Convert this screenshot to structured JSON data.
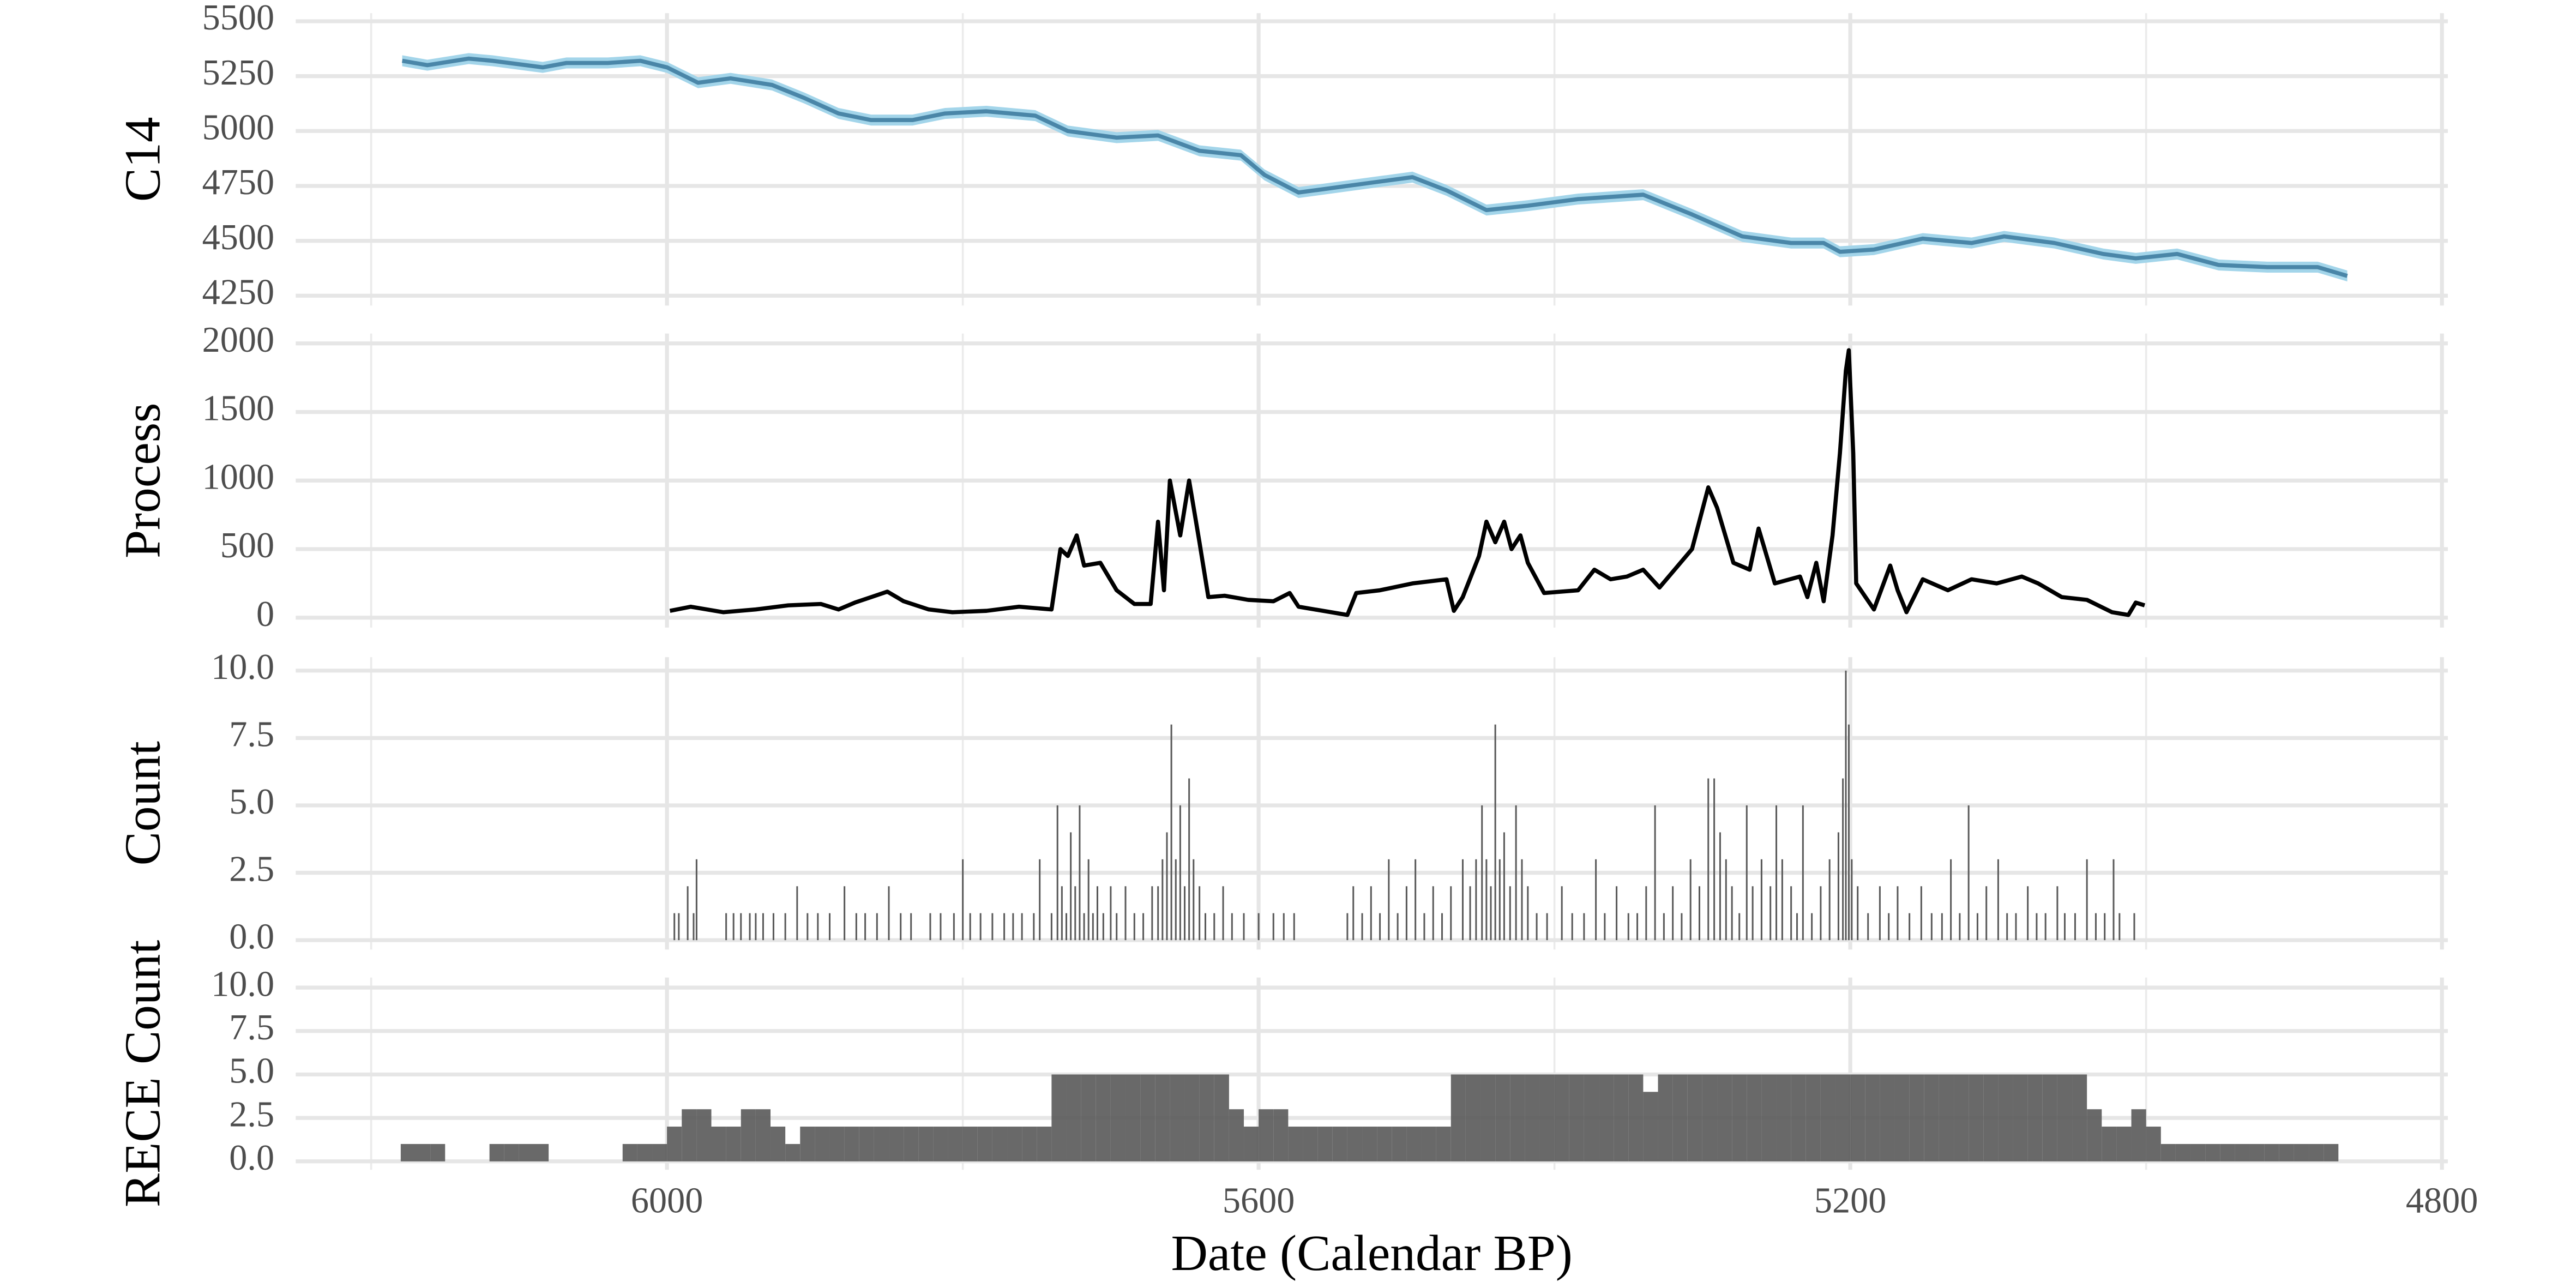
{
  "chart_data": {
    "xlabel": "Date (Calendar BP)",
    "xlim": [
      6251,
      4796
    ],
    "xticks": [
      6000,
      5600,
      5200,
      4800
    ],
    "xminor": [
      6200,
      5800,
      5400,
      5000
    ],
    "grid": true,
    "panels": [
      {
        "type": "ribbon-line",
        "ylabel": "C14",
        "ylim": [
          4205,
          5537
        ],
        "yticks": [
          4250,
          4500,
          4750,
          5000,
          5250,
          5500
        ],
        "x": [
          6179,
          6162,
          6134,
          6118,
          6084,
          6068,
          6040,
          6018,
          6000,
          5979,
          5957,
          5929,
          5907,
          5884,
          5862,
          5834,
          5812,
          5784,
          5751,
          5729,
          5696,
          5668,
          5640,
          5612,
          5596,
          5573,
          5540,
          5496,
          5473,
          5446,
          5418,
          5384,
          5340,
          5307,
          5273,
          5240,
          5218,
          5207,
          5184,
          5151,
          5118,
          5096,
          5062,
          5029,
          5007,
          4979,
          4951,
          4918,
          4884,
          4864
        ],
        "series": [
          {
            "color": "#4a86a8",
            "band_color": "#a3d5ea",
            "values": [
              5320,
              5300,
              5330,
              5320,
              5290,
              5310,
              5310,
              5320,
              5290,
              5220,
              5240,
              5210,
              5150,
              5080,
              5050,
              5050,
              5080,
              5090,
              5070,
              5000,
              4970,
              4980,
              4910,
              4890,
              4800,
              4720,
              4750,
              4790,
              4730,
              4640,
              4660,
              4690,
              4710,
              4620,
              4520,
              4490,
              4490,
              4450,
              4460,
              4510,
              4490,
              4520,
              4490,
              4440,
              4420,
              4440,
              4390,
              4380,
              4380,
              4340
            ],
            "lower": [
              5295,
              5275,
              5305,
              5295,
              5265,
              5285,
              5285,
              5295,
              5265,
              5195,
              5215,
              5185,
              5125,
              5055,
              5025,
              5025,
              5055,
              5065,
              5045,
              4975,
              4945,
              4955,
              4885,
              4865,
              4775,
              4695,
              4725,
              4765,
              4705,
              4615,
              4635,
              4665,
              4685,
              4595,
              4495,
              4465,
              4465,
              4425,
              4435,
              4485,
              4465,
              4495,
              4465,
              4415,
              4395,
              4415,
              4365,
              4355,
              4355,
              4315
            ],
            "upper": [
              5345,
              5325,
              5355,
              5345,
              5315,
              5335,
              5335,
              5345,
              5315,
              5245,
              5265,
              5235,
              5175,
              5105,
              5075,
              5075,
              5105,
              5115,
              5095,
              5025,
              4995,
              5005,
              4935,
              4915,
              4825,
              4745,
              4775,
              4815,
              4755,
              4665,
              4685,
              4715,
              4735,
              4645,
              4545,
              4515,
              4515,
              4475,
              4485,
              4535,
              4515,
              4545,
              4515,
              4465,
              4445,
              4465,
              4415,
              4405,
              4405,
              4365
            ]
          }
        ]
      },
      {
        "type": "line",
        "ylabel": "Process",
        "ylim": [
          -72,
          2072
        ],
        "yticks": [
          0,
          500,
          1000,
          1500,
          2000
        ],
        "x": [
          5998,
          5984,
          5962,
          5940,
          5918,
          5896,
          5884,
          5873,
          5862,
          5851,
          5840,
          5823,
          5807,
          5784,
          5762,
          5740,
          5734,
          5729,
          5723,
          5718,
          5707,
          5696,
          5684,
          5673,
          5668,
          5664,
          5660,
          5653,
          5647,
          5640,
          5634,
          5623,
          5607,
          5590,
          5579,
          5573,
          5562,
          5540,
          5534,
          5518,
          5496,
          5473,
          5468,
          5462,
          5451,
          5446,
          5440,
          5434,
          5429,
          5423,
          5418,
          5407,
          5384,
          5373,
          5362,
          5351,
          5340,
          5329,
          5307,
          5296,
          5290,
          5279,
          5268,
          5262,
          5251,
          5234,
          5229,
          5223,
          5218,
          5212,
          5207,
          5203,
          5201,
          5198,
          5196,
          5184,
          5173,
          5168,
          5162,
          5151,
          5134,
          5118,
          5101,
          5084,
          5073,
          5057,
          5040,
          5023,
          5012,
          5007,
          5001
        ],
        "series": [
          {
            "color": "#000000",
            "values": [
              50,
              80,
              40,
              60,
              90,
              100,
              60,
              110,
              150,
              190,
              120,
              60,
              40,
              50,
              80,
              60,
              500,
              450,
              600,
              380,
              400,
              200,
              100,
              100,
              700,
              200,
              1000,
              600,
              1000,
              550,
              150,
              160,
              130,
              120,
              180,
              80,
              60,
              20,
              180,
              200,
              250,
              280,
              50,
              150,
              450,
              700,
              550,
              700,
              500,
              600,
              400,
              180,
              200,
              350,
              280,
              300,
              350,
              220,
              500,
              950,
              800,
              400,
              350,
              650,
              250,
              300,
              150,
              400,
              120,
              600,
              1200,
              1800,
              1950,
              1200,
              250,
              60,
              380,
              200,
              40,
              280,
              200,
              280,
              250,
              300,
              250,
              150,
              130,
              40,
              20,
              110,
              90
            ]
          }
        ]
      },
      {
        "type": "spikes",
        "ylabel": "Count",
        "color": "#595959",
        "ylim": [
          -0.35,
          10.5
        ],
        "yticks": [
          {
            "value": 0,
            "label": "0.0"
          },
          2.5,
          {
            "value": 5,
            "label": "5.0"
          },
          7.5,
          {
            "value": 10,
            "label": "10.0"
          }
        ],
        "x": [
          5995,
          5992,
          5986,
          5982,
          5980,
          5960,
          5955,
          5950,
          5944,
          5940,
          5935,
          5928,
          5920,
          5912,
          5905,
          5898,
          5890,
          5880,
          5872,
          5866,
          5858,
          5850,
          5842,
          5835,
          5822,
          5815,
          5806,
          5800,
          5795,
          5788,
          5780,
          5772,
          5766,
          5760,
          5752,
          5748,
          5740,
          5736,
          5733,
          5730,
          5727,
          5724,
          5721,
          5718,
          5715,
          5712,
          5709,
          5705,
          5700,
          5696,
          5690,
          5684,
          5678,
          5672,
          5668,
          5665,
          5662,
          5659,
          5656,
          5653,
          5650,
          5647,
          5644,
          5640,
          5636,
          5630,
          5624,
          5618,
          5610,
          5600,
          5590,
          5583,
          5576,
          5540,
          5536,
          5530,
          5524,
          5518,
          5512,
          5506,
          5500,
          5494,
          5488,
          5482,
          5476,
          5470,
          5462,
          5457,
          5453,
          5449,
          5446,
          5443,
          5440,
          5437,
          5434,
          5430,
          5426,
          5422,
          5418,
          5412,
          5405,
          5395,
          5388,
          5380,
          5372,
          5366,
          5358,
          5350,
          5344,
          5338,
          5332,
          5326,
          5320,
          5314,
          5308,
          5302,
          5296,
          5292,
          5288,
          5284,
          5280,
          5275,
          5270,
          5266,
          5260,
          5254,
          5250,
          5246,
          5240,
          5236,
          5232,
          5226,
          5220,
          5214,
          5208,
          5205,
          5203,
          5201,
          5199,
          5195,
          5188,
          5180,
          5174,
          5168,
          5160,
          5152,
          5145,
          5138,
          5132,
          5126,
          5120,
          5114,
          5108,
          5100,
          5094,
          5088,
          5080,
          5074,
          5068,
          5060,
          5055,
          5048,
          5040,
          5034,
          5028,
          5022,
          5018,
          5008
        ],
        "values": [
          1,
          1,
          2,
          1,
          3,
          1,
          1,
          1,
          1,
          1,
          1,
          1,
          1,
          2,
          1,
          1,
          1,
          2,
          1,
          1,
          1,
          2,
          1,
          1,
          1,
          1,
          1,
          3,
          1,
          1,
          1,
          1,
          1,
          1,
          1,
          3,
          1,
          5,
          2,
          1,
          4,
          2,
          5,
          1,
          3,
          1,
          2,
          1,
          2,
          1,
          2,
          1,
          1,
          2,
          2,
          3,
          4,
          8,
          3,
          5,
          2,
          6,
          3,
          2,
          1,
          1,
          2,
          1,
          1,
          1,
          1,
          1,
          1,
          1,
          2,
          1,
          2,
          1,
          3,
          1,
          2,
          3,
          1,
          2,
          1,
          2,
          3,
          2,
          3,
          5,
          3,
          2,
          8,
          3,
          4,
          2,
          5,
          3,
          2,
          1,
          1,
          2,
          1,
          1,
          3,
          1,
          2,
          1,
          1,
          2,
          5,
          1,
          2,
          1,
          3,
          2,
          6,
          6,
          4,
          3,
          2,
          1,
          5,
          2,
          3,
          2,
          5,
          3,
          2,
          1,
          5,
          1,
          2,
          3,
          4,
          6,
          10,
          8,
          3,
          2,
          1,
          2,
          1,
          2,
          1,
          2,
          1,
          1,
          3,
          1,
          5,
          1,
          2,
          3,
          1,
          1,
          2,
          1,
          1,
          2,
          1,
          1,
          3,
          1,
          1,
          3,
          1,
          1
        ]
      },
      {
        "type": "steps",
        "ylabel": "RECE Count",
        "color": "#595959",
        "width": 10,
        "ylim": [
          -0.48,
          10.58
        ],
        "yticks": [
          {
            "value": 0,
            "label": "0.0"
          },
          2.5,
          {
            "value": 5,
            "label": "5.0"
          },
          7.5,
          {
            "value": 10,
            "label": "10.0"
          }
        ],
        "x": [
          6175,
          6165,
          6155,
          6145,
          6135,
          6125,
          6115,
          6105,
          6095,
          6085,
          6075,
          6065,
          6055,
          6045,
          6035,
          6025,
          6015,
          6005,
          5995,
          5985,
          5975,
          5965,
          5955,
          5945,
          5935,
          5925,
          5915,
          5905,
          5895,
          5885,
          5875,
          5865,
          5855,
          5845,
          5835,
          5825,
          5815,
          5805,
          5795,
          5785,
          5775,
          5765,
          5755,
          5745,
          5735,
          5725,
          5715,
          5705,
          5695,
          5685,
          5675,
          5665,
          5655,
          5645,
          5635,
          5625,
          5615,
          5605,
          5595,
          5585,
          5575,
          5565,
          5555,
          5545,
          5535,
          5525,
          5515,
          5505,
          5495,
          5485,
          5475,
          5465,
          5455,
          5445,
          5435,
          5425,
          5415,
          5405,
          5395,
          5385,
          5375,
          5365,
          5355,
          5345,
          5335,
          5325,
          5315,
          5305,
          5295,
          5285,
          5275,
          5265,
          5255,
          5245,
          5235,
          5225,
          5215,
          5205,
          5195,
          5185,
          5175,
          5165,
          5155,
          5145,
          5135,
          5125,
          5115,
          5105,
          5095,
          5085,
          5075,
          5065,
          5055,
          5045,
          5035,
          5025,
          5015,
          5005,
          4995,
          4985,
          4975,
          4965,
          4955,
          4945,
          4935,
          4925,
          4915,
          4905,
          4895,
          4885,
          4875
        ],
        "values": [
          1,
          1,
          1,
          0,
          0,
          0,
          1,
          1,
          1,
          1,
          0,
          0,
          0,
          0,
          0,
          1,
          1,
          1,
          2,
          3,
          3,
          2,
          2,
          3,
          3,
          2,
          1,
          2,
          2,
          2,
          2,
          2,
          2,
          2,
          2,
          2,
          2,
          2,
          2,
          2,
          2,
          2,
          2,
          2,
          5,
          5,
          5,
          5,
          5,
          5,
          5,
          5,
          5,
          5,
          5,
          5,
          3,
          2,
          3,
          3,
          2,
          2,
          2,
          2,
          2,
          2,
          2,
          2,
          2,
          2,
          2,
          5,
          5,
          5,
          5,
          5,
          5,
          5,
          5,
          5,
          5,
          5,
          5,
          5,
          4,
          5,
          5,
          5,
          5,
          5,
          5,
          5,
          5,
          5,
          5,
          5,
          5,
          5,
          5,
          5,
          5,
          5,
          5,
          5,
          5,
          5,
          5,
          5,
          5,
          5,
          5,
          5,
          5,
          5,
          3,
          2,
          2,
          3,
          2,
          1,
          1,
          1,
          1,
          1,
          1,
          1,
          1,
          1,
          1,
          1,
          1
        ]
      }
    ]
  }
}
